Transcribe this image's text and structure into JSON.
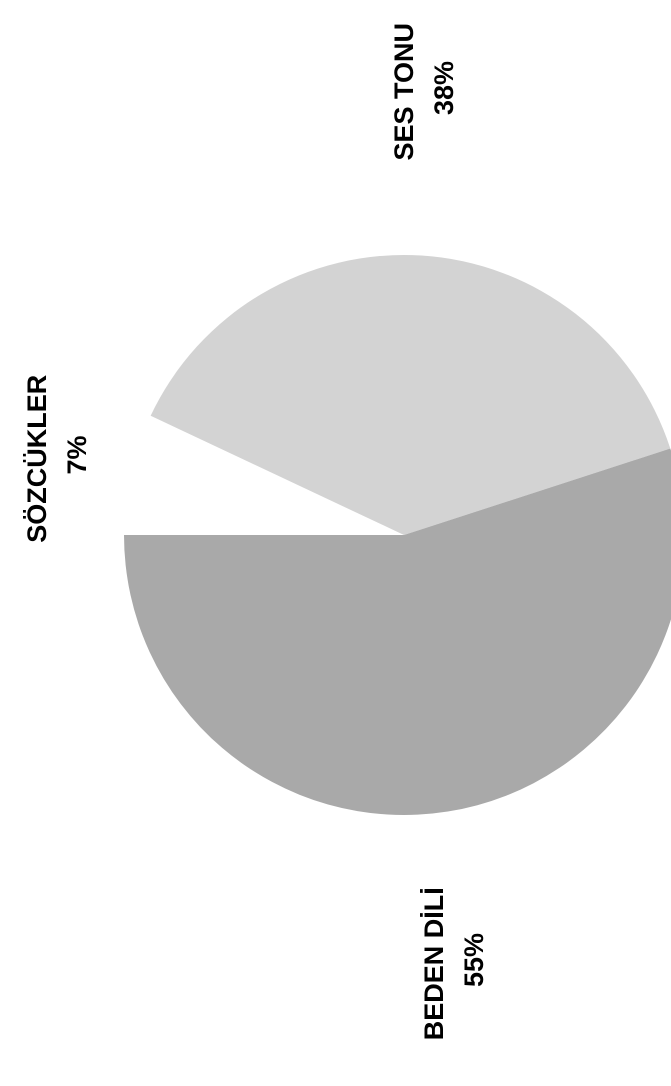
{
  "chart_data": {
    "type": "pie",
    "categories": [
      "SÖZCÜKLER",
      "SES TONU",
      "BEDEN DİLİ"
    ],
    "values": [
      7,
      38,
      55
    ],
    "value_labels": [
      "7%",
      "38%",
      "55%"
    ],
    "colors": [
      "#ffffff",
      "#d3d3d3",
      "#a9a9a9"
    ],
    "title": "",
    "legend": "none",
    "grid": false
  }
}
